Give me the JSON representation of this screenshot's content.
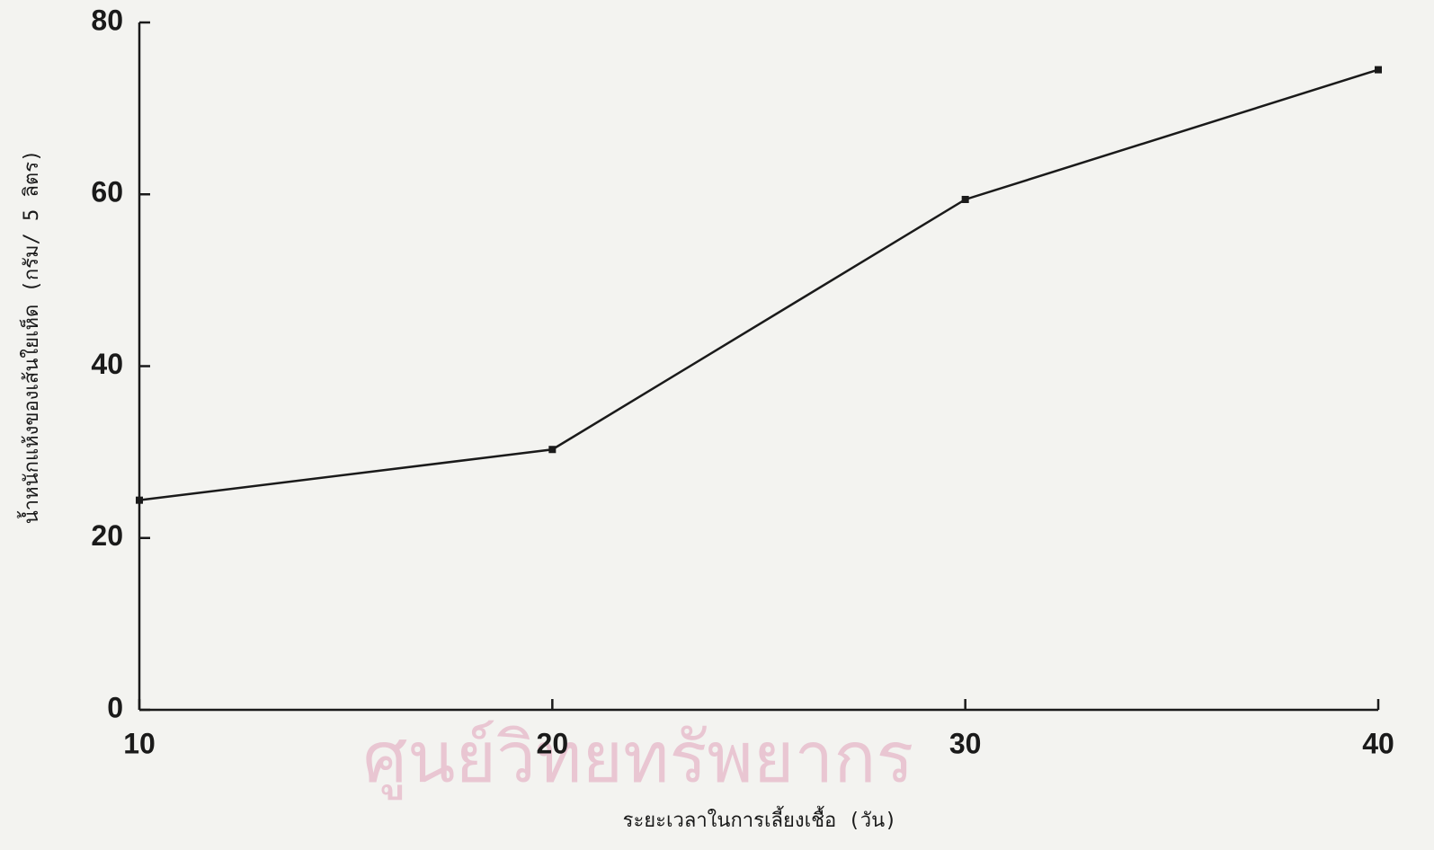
{
  "chart_data": {
    "type": "line",
    "x_label": "ระยะเวลาในการเลี้ยงเชื้อ (วัน)",
    "y_label": "น้ำหนักแห้งของเส้นใยเห็ด (กรัม/ 5 ลิตร)",
    "watermark": "ศูนย์วิทยทรัพยากร",
    "x": [
      10,
      20,
      30,
      40
    ],
    "series": [
      {
        "color": "#1a1a1a",
        "values": [
          24.4,
          30.3,
          59.4,
          74.5
        ]
      }
    ],
    "xlim": [
      10,
      40
    ],
    "xticks": [
      10,
      20,
      30,
      40
    ],
    "ylim": [
      0,
      80
    ],
    "yticks": [
      0,
      20,
      40,
      60,
      80
    ]
  }
}
